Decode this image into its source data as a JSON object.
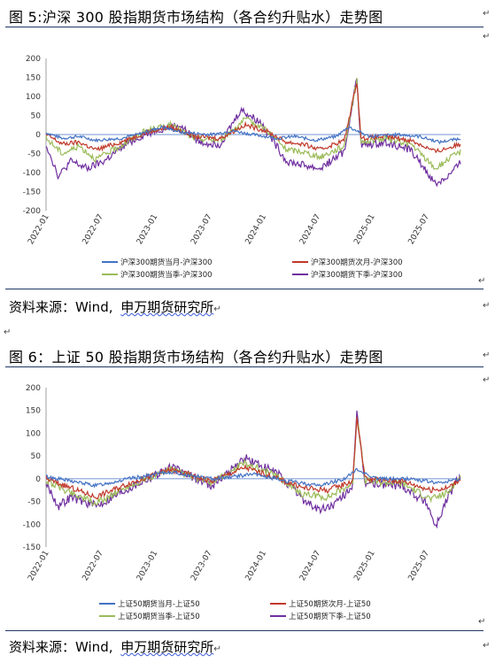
{
  "figure5": {
    "title": "图 5:沪深 300 股指期货市场结构（各合约升贴水）走势图",
    "source_label": "资料来源：",
    "source_vendor": "Wind,",
    "source_org": "申万期货研究所",
    "chart_data": {
      "type": "line",
      "y_ticks": [
        "200",
        "150",
        "100",
        "50",
        "0",
        "-50",
        "-100",
        "-150",
        "-200"
      ],
      "x_ticks": [
        "2022-01",
        "2022-07",
        "2023-01",
        "2023-07",
        "2024-01",
        "2024-07",
        "2025-01",
        "2025-07"
      ],
      "ylim": [
        -200,
        200
      ],
      "series": [
        {
          "name": "沪深300期货当月-沪深300",
          "color": "#4472c4"
        },
        {
          "name": "沪深300期货次月-沪深300",
          "color": "#c0392b"
        },
        {
          "name": "沪深300期货当季-沪深300",
          "color": "#9bbb59"
        },
        {
          "name": "沪深300期货下季-沪深300",
          "color": "#7030a0"
        }
      ]
    }
  },
  "figure6": {
    "title": "图 6：上证 50 股指期货市场结构（各合约升贴水）走势图",
    "source_label": "资料来源：",
    "source_vendor": "Wind,",
    "source_org": "申万期货研究所",
    "chart_data": {
      "type": "line",
      "y_ticks": [
        "200",
        "150",
        "100",
        "50",
        "0",
        "-50",
        "-100",
        "-150"
      ],
      "x_ticks": [
        "2022-01",
        "2022-07",
        "2023-01",
        "2023-07",
        "2024-01",
        "2024-07",
        "2025-01",
        "2025-07"
      ],
      "ylim": [
        -150,
        200
      ],
      "series": [
        {
          "name": "上证50期货当月-上证50",
          "color": "#4472c4"
        },
        {
          "name": "上证50期货次月-上证50",
          "color": "#c0392b"
        },
        {
          "name": "上证50期货当季-上证50",
          "color": "#9bbb59"
        },
        {
          "name": "上证50期货下季-上证50",
          "color": "#7030a0"
        }
      ]
    }
  }
}
